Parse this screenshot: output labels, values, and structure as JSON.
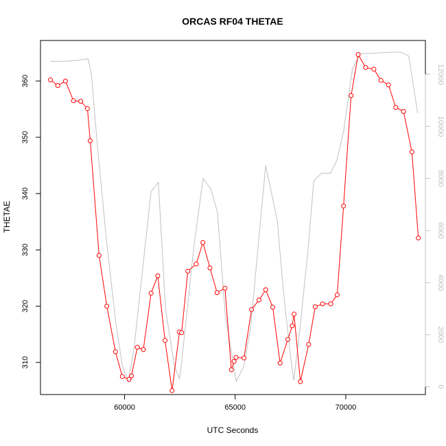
{
  "chart_data": {
    "type": "line",
    "title": "ORCAS RF04 THETAE",
    "xlabel": "UTC Seconds",
    "ylabel": "THETAE",
    "xlim": [
      56200,
      73600
    ],
    "ylim": [
      304.3,
      367.2
    ],
    "y2lim": [
      -300,
      13300
    ],
    "x_ticks": [
      60000,
      65000,
      70000
    ],
    "x_tick_labels": [
      "60000",
      "65000",
      "70000"
    ],
    "y_ticks": [
      310,
      320,
      330,
      340,
      350,
      360
    ],
    "y_tick_labels": [
      "310",
      "320",
      "330",
      "340",
      "350",
      "360"
    ],
    "y2_ticks": [
      0,
      2000,
      4000,
      6000,
      8000,
      10000,
      12000
    ],
    "y2_tick_labels": [
      "0",
      "2000",
      "4000",
      "6000",
      "8000",
      "10000",
      "12000"
    ],
    "grid": false,
    "legend": "none",
    "series": [
      {
        "axis": "left",
        "color": "#ff0000",
        "marker": "open-circle",
        "x": [
          56650,
          56980,
          57330,
          57690,
          58020,
          58320,
          58450,
          58850,
          59200,
          59590,
          59900,
          60200,
          60310,
          60580,
          60850,
          61200,
          61500,
          61830,
          62150,
          62480,
          62580,
          62860,
          63240,
          63540,
          63860,
          64180,
          64540,
          64830,
          64950,
          65040,
          65400,
          65740,
          66080,
          66380,
          66700,
          67030,
          67380,
          67580,
          67660,
          67950,
          68320,
          68620,
          68950,
          69320,
          69610,
          69900,
          70240,
          70560,
          70900,
          71270,
          71590,
          71930,
          72260,
          72610,
          72990,
          73280
        ],
        "y": [
          360.2,
          359.2,
          360.0,
          356.5,
          356.4,
          355.1,
          349.4,
          329.0,
          320.0,
          311.9,
          307.5,
          307.0,
          307.6,
          312.7,
          312.3,
          322.3,
          325.4,
          313.9,
          305.0,
          315.4,
          315.3,
          326.2,
          327.5,
          331.3,
          326.8,
          322.4,
          323.2,
          308.7,
          310.2,
          310.9,
          310.8,
          319.4,
          321.1,
          322.9,
          319.8,
          309.9,
          314.1,
          316.5,
          318.6,
          306.6,
          313.2,
          319.9,
          320.4,
          320.4,
          322.0,
          337.8,
          357.4,
          364.7,
          362.4,
          362.1,
          360.1,
          359.3,
          355.3,
          354.6,
          347.4,
          332.1
        ]
      },
      {
        "axis": "right",
        "color": "#c0c0c0",
        "marker": "none",
        "x": [
          56650,
          57300,
          58000,
          58350,
          58500,
          58800,
          59200,
          59600,
          59900,
          60170,
          60430,
          61200,
          61530,
          61850,
          62250,
          62480,
          62550,
          63150,
          63550,
          63900,
          64200,
          64550,
          65050,
          65400,
          65700,
          66380,
          66900,
          67200,
          67500,
          67650,
          67900,
          68300,
          68550,
          68900,
          69300,
          69600,
          69900,
          70300,
          70650,
          71000,
          72000,
          72500,
          72850,
          73250
        ],
        "y": [
          12500,
          12500,
          12550,
          12600,
          12000,
          9000,
          5500,
          2500,
          800,
          200,
          1500,
          7500,
          7850,
          3000,
          800,
          300,
          700,
          5500,
          8000,
          7600,
          6700,
          2800,
          200,
          800,
          2300,
          8500,
          6400,
          3500,
          1200,
          250,
          2000,
          5300,
          7900,
          8200,
          8200,
          8700,
          9800,
          12200,
          12800,
          12800,
          12850,
          12850,
          12700,
          10500
        ]
      }
    ]
  }
}
